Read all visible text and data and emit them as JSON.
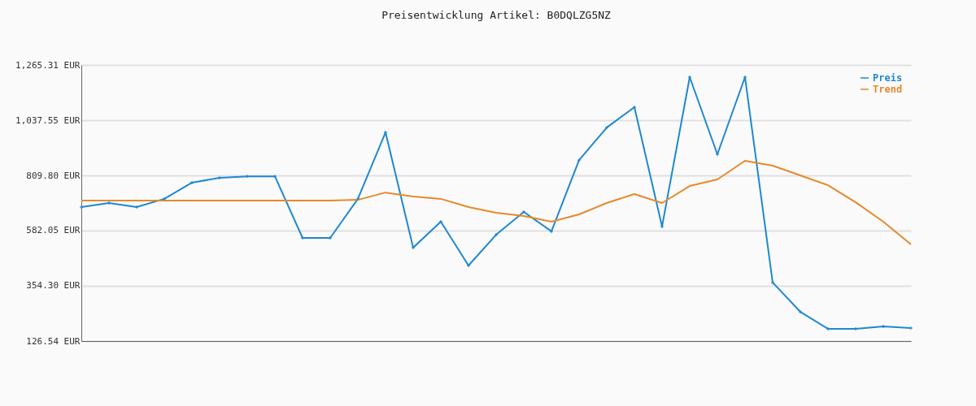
{
  "chart_data": {
    "type": "line",
    "title": "Preisentwicklung Artikel: B0DQLZG5NZ",
    "categories": [
      null,
      null,
      null,
      null,
      null,
      null,
      null,
      null,
      null,
      null,
      null,
      null,
      null,
      null,
      null,
      null,
      null,
      null,
      null,
      null,
      null,
      null,
      null,
      null,
      null,
      null,
      null,
      null,
      null,
      null,
      null
    ],
    "series": [
      {
        "name": "Preis",
        "color": "#1f88d0",
        "marker": "diamond",
        "values": [
          679,
          696,
          679,
          713,
          780,
          800,
          806,
          806,
          552,
          552,
          713,
          987,
          512,
          619,
          438,
          565,
          659,
          579,
          873,
          1007,
          1091,
          599,
          1215,
          897,
          1215,
          368,
          247,
          177,
          177,
          187,
          180
        ]
      },
      {
        "name": "Trend",
        "color": "#e6892a",
        "values": [
          706,
          706,
          706,
          706,
          706,
          706,
          706,
          706,
          706,
          706,
          709,
          739,
          723,
          713,
          679,
          656,
          642,
          619,
          649,
          696,
          733,
          696,
          766,
          793,
          870,
          850,
          810,
          769,
          699,
          619,
          525
        ]
      }
    ],
    "ylim": [
      126.54,
      1265.31
    ],
    "yticks": [
      {
        "value": 126.54,
        "label": "126.54 EUR"
      },
      {
        "value": 354.3,
        "label": "354.30 EUR"
      },
      {
        "value": 582.05,
        "label": "582.05 EUR"
      },
      {
        "value": 809.8,
        "label": "809.80 EUR"
      },
      {
        "value": 1037.55,
        "label": "1,037.55 EUR"
      },
      {
        "value": 1265.31,
        "label": "1,265.31 EUR"
      }
    ],
    "grid": "y",
    "legend": "top right",
    "tick_labels": "y",
    "line_style": "solid"
  }
}
